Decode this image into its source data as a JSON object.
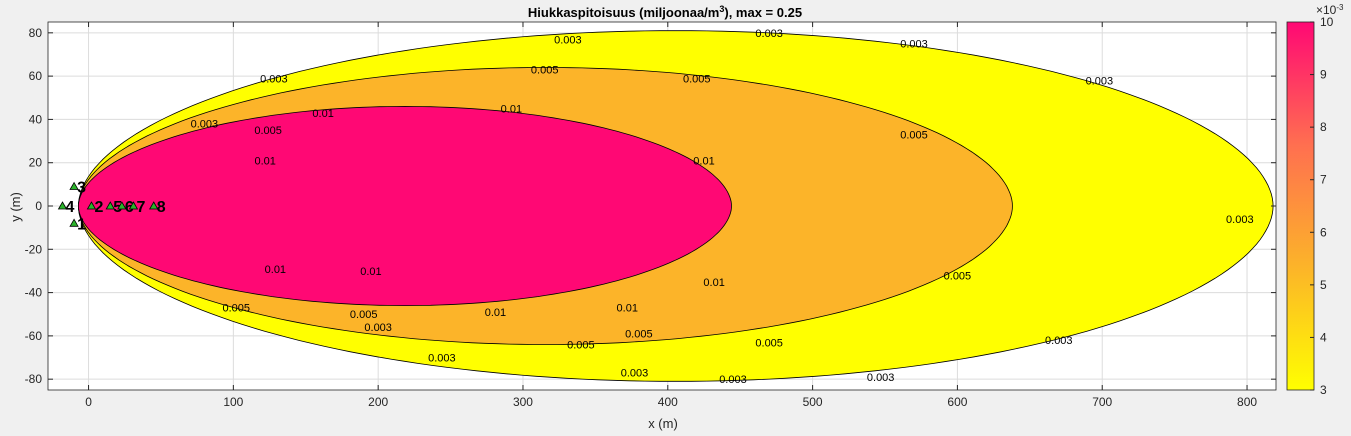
{
  "chart_data": {
    "type": "contour",
    "title_prefix": "Hiukkaspitoisuus (miljoonaa/m",
    "title_sup": "3",
    "title_suffix": "), max =  0.25",
    "xlabel": "x (m)",
    "ylabel": "y (m)",
    "xlim": [
      -28,
      820
    ],
    "ylim": [
      -85,
      85
    ],
    "xticks": [
      0,
      100,
      200,
      300,
      400,
      500,
      600,
      700,
      800
    ],
    "yticks": [
      -80,
      -60,
      -40,
      -20,
      0,
      20,
      40,
      60,
      80
    ],
    "grid": true,
    "levels": [
      {
        "value": 0.003,
        "label": "0.003",
        "color": "#ffff00",
        "x_max": 818,
        "y_max": 81,
        "labels": [
          [
            331,
            77
          ],
          [
            470,
            80
          ],
          [
            570,
            75
          ],
          [
            698,
            58
          ],
          [
            795,
            -6
          ],
          [
            670,
            -62
          ],
          [
            547,
            -79
          ],
          [
            445,
            -80
          ],
          [
            377,
            -77
          ],
          [
            244,
            -70
          ],
          [
            200,
            -56
          ],
          [
            128,
            59
          ],
          [
            80,
            38
          ]
        ]
      },
      {
        "value": 0.005,
        "label": "0.005",
        "color": "#fcb429",
        "x_max": 638,
        "y_max": 64,
        "labels": [
          [
            315,
            63
          ],
          [
            420,
            59
          ],
          [
            570,
            33
          ],
          [
            600,
            -32
          ],
          [
            470,
            -63
          ],
          [
            340,
            -64
          ],
          [
            380,
            -59
          ],
          [
            190,
            -50
          ],
          [
            102,
            -47
          ],
          [
            124,
            35
          ]
        ]
      },
      {
        "value": 0.01,
        "label": "0.01",
        "color": "#ff0874",
        "x_max": 444,
        "y_max": 46,
        "labels": [
          [
            162,
            43
          ],
          [
            292,
            45
          ],
          [
            425,
            21
          ],
          [
            432,
            -35
          ],
          [
            372,
            -47
          ],
          [
            281,
            -49
          ],
          [
            195,
            -30
          ],
          [
            122,
            21
          ],
          [
            129,
            -29
          ]
        ]
      }
    ],
    "colorbar": {
      "min": 3,
      "max": 10,
      "ticks": [
        3,
        4,
        5,
        6,
        7,
        8,
        9,
        10
      ],
      "exponent": "×10",
      "exponent_power": "-3",
      "stops": [
        "#ffff00",
        "#fcb429",
        "#ff6f50",
        "#ff0874"
      ]
    },
    "sources": [
      {
        "label": "4",
        "x": -18,
        "y": 0
      },
      {
        "label": "3",
        "x": -10,
        "y": 9
      },
      {
        "label": "1",
        "x": -10,
        "y": -8
      },
      {
        "label": "2",
        "x": 2,
        "y": 0
      },
      {
        "label": "5",
        "x": 15,
        "y": 0
      },
      {
        "label": "6",
        "x": 23,
        "y": 0
      },
      {
        "label": "7",
        "x": 31,
        "y": 0
      },
      {
        "label": "8",
        "x": 45,
        "y": 0
      }
    ],
    "source_marker_color": "#2bb52b"
  }
}
